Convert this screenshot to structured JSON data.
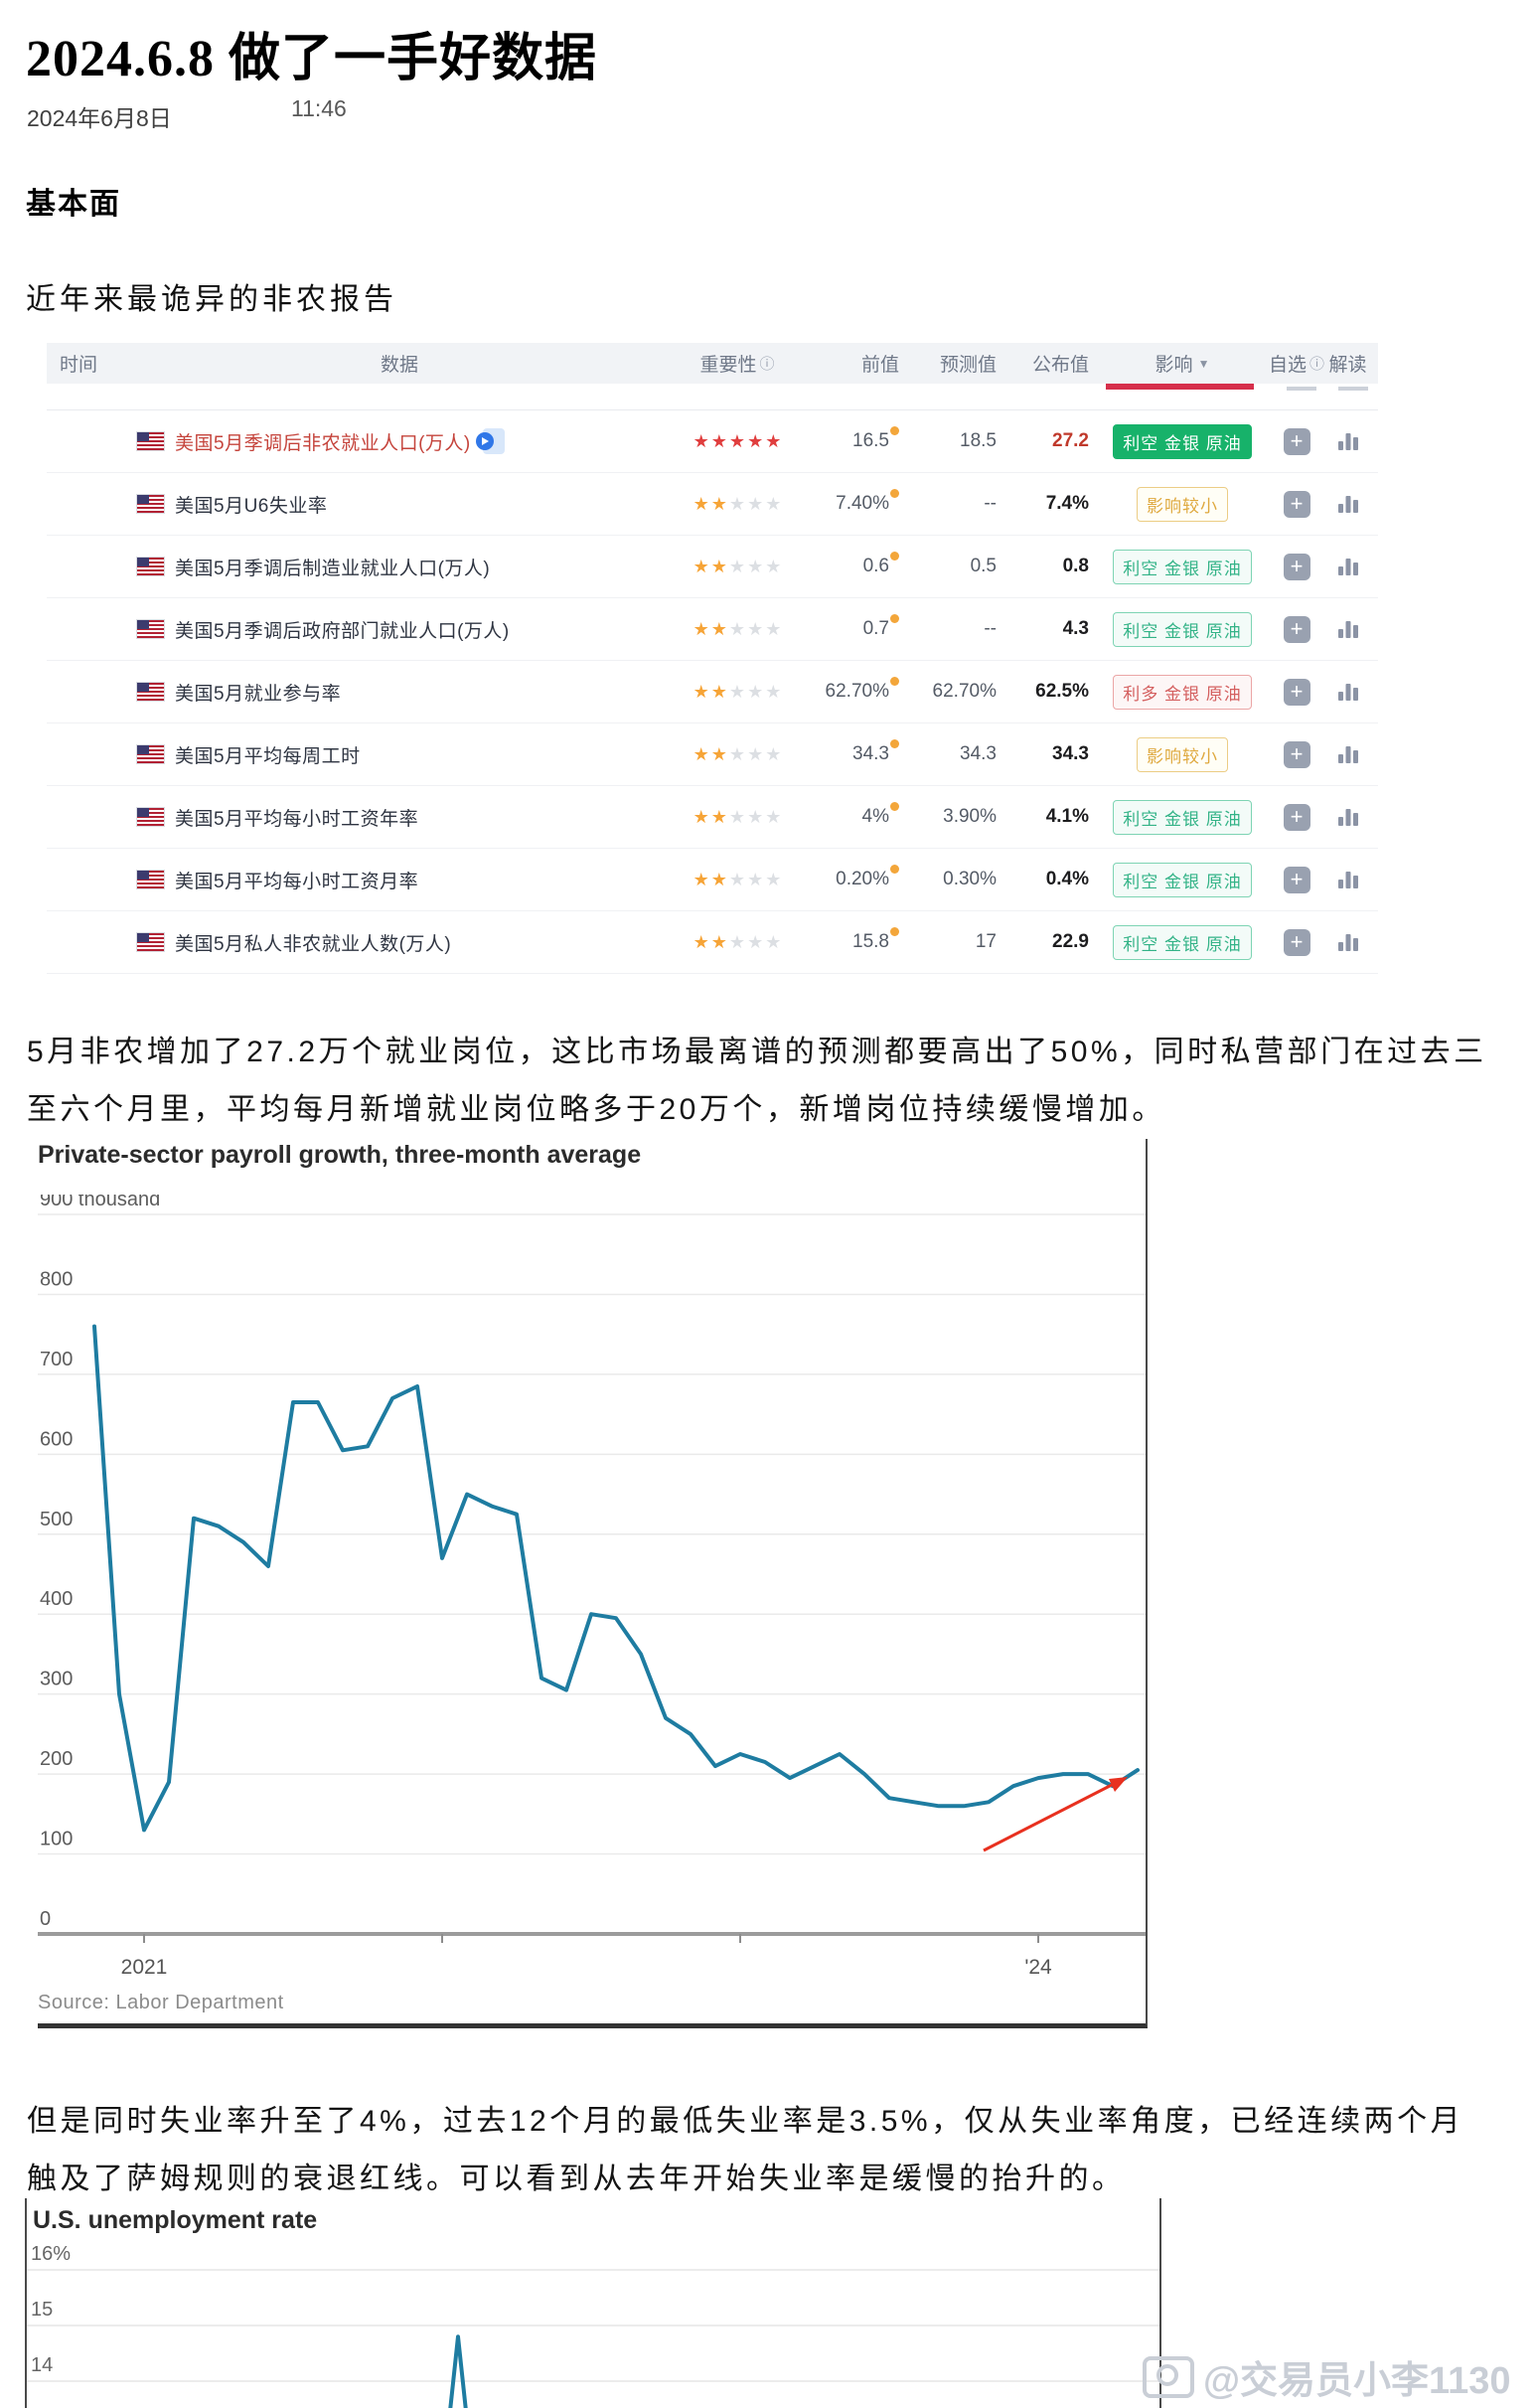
{
  "header": {
    "title": "2024.6.8 做了一手好数据",
    "date": "2024年6月8日",
    "time": "11:46"
  },
  "sections": {
    "fundamentals_heading": "基本面",
    "intro_line": "近年来最诡异的非农报告",
    "paragraph1": "5月非农增加了27.2万个就业岗位，这比市场最离谱的预测都要高出了50%，同时私营部门在过去三至六个月里，平均每月新增就业岗位略多于20万个，新增岗位持续缓慢增加。",
    "paragraph2": "但是同时失业率升至了4%，过去12个月的最低失业率是3.5%，仅从失业率角度，已经连续两个月触及了萨姆规则的衰退红线。可以看到从去年开始失业率是缓慢的抬升的。"
  },
  "icons": {
    "info": "ⓘ",
    "caret": "▼",
    "plus": "+",
    "star": "★"
  },
  "calendar_table": {
    "headers": {
      "time": "时间",
      "data": "数据",
      "importance": "重要性",
      "previous": "前值",
      "forecast": "预测值",
      "actual": "公布值",
      "impact": "影响",
      "watchlist": "自选",
      "interpret": "解读"
    },
    "rows": [
      {
        "name": "美国5月季调后非农就业人口(万人)",
        "highlight": true,
        "has_video": true,
        "stars": 5,
        "star_color": "red",
        "prev": "16.5",
        "prev_dot": true,
        "forecast": "18.5",
        "actual": "27.2",
        "actual_red": true,
        "badge": {
          "text": "利空 金银 原油",
          "style": "solid-green"
        }
      },
      {
        "name": "美国5月U6失业率",
        "stars": 2,
        "prev": "7.40%",
        "forecast": "--",
        "actual": "7.4%",
        "badge": {
          "text": "影响较小",
          "style": "outline-yellow"
        }
      },
      {
        "name": "美国5月季调后制造业就业人口(万人)",
        "stars": 2,
        "prev": "0.6",
        "prev_dot": true,
        "forecast": "0.5",
        "actual": "0.8",
        "badge": {
          "text": "利空 金银 原油",
          "style": "outline-teal"
        }
      },
      {
        "name": "美国5月季调后政府部门就业人口(万人)",
        "stars": 2,
        "prev": "0.7",
        "prev_dot": true,
        "forecast": "--",
        "actual": "4.3",
        "badge": {
          "text": "利空 金银 原油",
          "style": "outline-teal"
        }
      },
      {
        "name": "美国5月就业参与率",
        "stars": 2,
        "prev": "62.70%",
        "forecast": "62.70%",
        "actual": "62.5%",
        "badge": {
          "text": "利多 金银 原油",
          "style": "outline-red"
        }
      },
      {
        "name": "美国5月平均每周工时",
        "stars": 2,
        "prev": "34.3",
        "forecast": "34.3",
        "actual": "34.3",
        "badge": {
          "text": "影响较小",
          "style": "outline-yellow"
        }
      },
      {
        "name": "美国5月平均每小时工资年率",
        "stars": 2,
        "prev": "4%",
        "prev_dot": true,
        "forecast": "3.90%",
        "actual": "4.1%",
        "badge": {
          "text": "利空 金银 原油",
          "style": "outline-teal"
        }
      },
      {
        "name": "美国5月平均每小时工资月率",
        "stars": 2,
        "prev": "0.20%",
        "forecast": "0.30%",
        "actual": "0.4%",
        "badge": {
          "text": "利空 金银 原油",
          "style": "outline-teal"
        }
      },
      {
        "name": "美国5月私人非农就业人数(万人)",
        "stars": 2,
        "prev": "15.8",
        "prev_dot": true,
        "forecast": "17",
        "actual": "22.9",
        "badge": {
          "text": "利空 金银 原油",
          "style": "outline-teal"
        }
      }
    ]
  },
  "chart_data": [
    {
      "type": "line",
      "title": "Private-sector payroll growth, three-month average",
      "y_axis_top_label": "900 thousand",
      "yticks": [
        900,
        800,
        700,
        600,
        500,
        400,
        300,
        200,
        100,
        0
      ],
      "ylim": [
        0,
        900
      ],
      "unit": "thousand",
      "values": [
        760,
        300,
        130,
        190,
        520,
        510,
        490,
        460,
        665,
        665,
        605,
        610,
        670,
        685,
        470,
        550,
        535,
        525,
        320,
        305,
        400,
        395,
        350,
        270,
        250,
        210,
        225,
        215,
        195,
        210,
        225,
        200,
        170,
        165,
        160,
        160,
        165,
        185,
        195,
        200,
        200,
        185,
        205
      ],
      "xticks": [
        {
          "label": "2021",
          "month_index": 2
        },
        {
          "label": "",
          "month_index": 14
        },
        {
          "label": "",
          "month_index": 26
        },
        {
          "label": "'24",
          "month_index": 38
        }
      ],
      "source": "Source: Labor Department",
      "line_color": "#1e7ca1",
      "annotation": {
        "type": "red-arrow",
        "color": "#e8301f"
      }
    },
    {
      "type": "line",
      "title": "U.S. unemployment rate",
      "yticks": [
        16,
        15,
        14
      ],
      "ytick_labels": [
        "16%",
        "15",
        "14"
      ],
      "visible_peak_value": 14.8,
      "truncated": true,
      "line_color": "#1e7ca1"
    }
  ],
  "watermark": {
    "text": "@交易员小李1130"
  },
  "colors": {
    "accent_red": "#d62f4b",
    "link_red": "#c5443c",
    "star_orange": "#f6a437",
    "star_red": "#e03e3e",
    "badge_green": "#17b26a",
    "badge_teal": "#33b387",
    "badge_yellow": "#dfa93f",
    "badge_red": "#d45f5f",
    "chart_line": "#1e7ca1",
    "arrow_red": "#e8301f"
  }
}
